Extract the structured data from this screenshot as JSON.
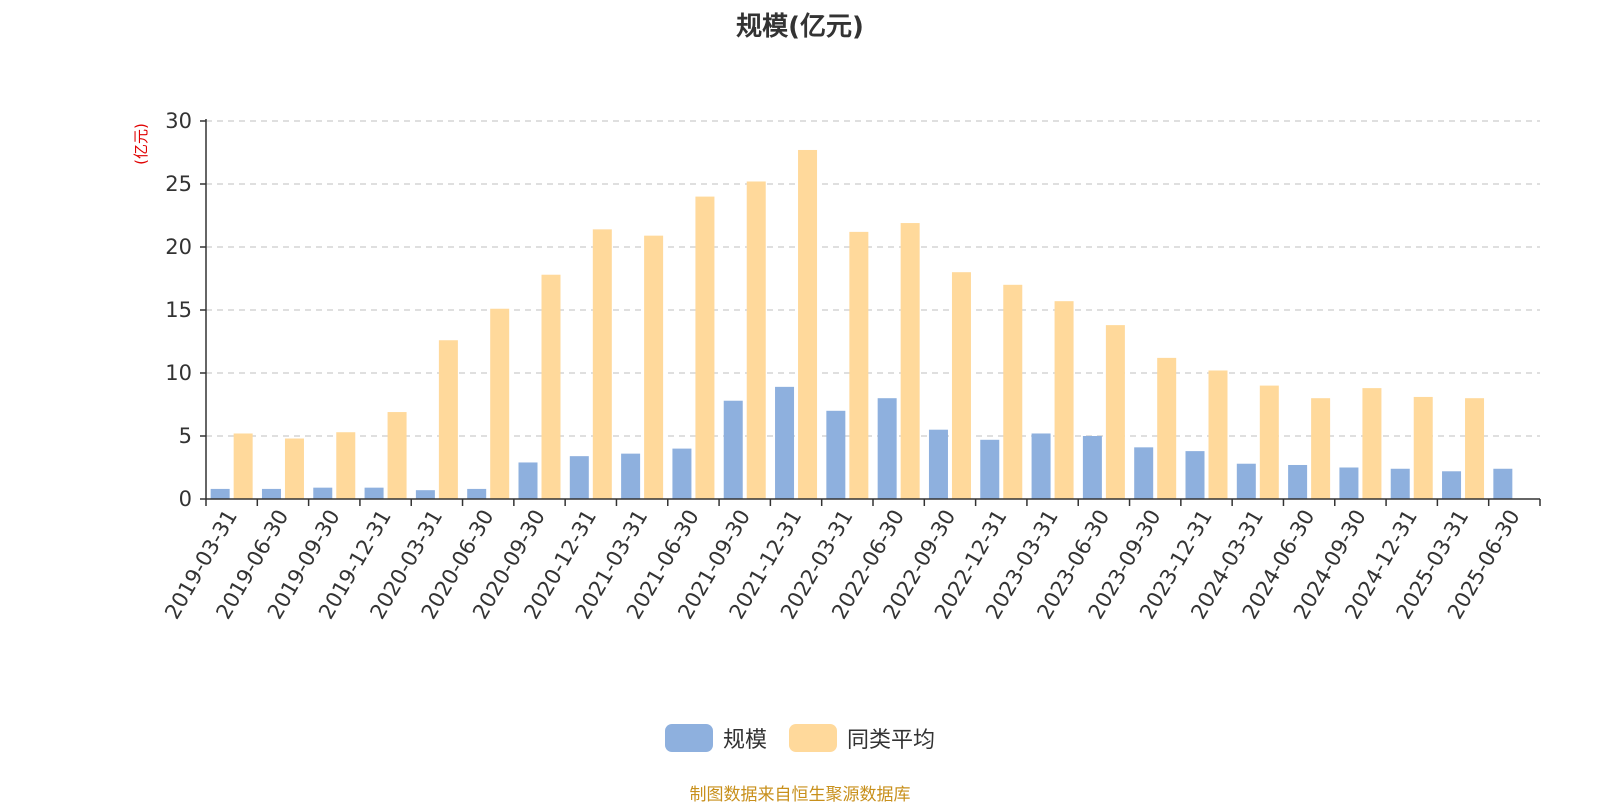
{
  "chart_data": {
    "type": "bar",
    "title": "规模(亿元)",
    "ylabel": "(亿元)",
    "ylim": [
      0,
      30
    ],
    "yticks": [
      0,
      5,
      10,
      15,
      20,
      25,
      30
    ],
    "grid": true,
    "legend_position": "bottom-center",
    "categories": [
      "2019-03-31",
      "2019-06-30",
      "2019-09-30",
      "2019-12-31",
      "2020-03-31",
      "2020-06-30",
      "2020-09-30",
      "2020-12-31",
      "2021-03-31",
      "2021-06-30",
      "2021-09-30",
      "2021-12-31",
      "2022-03-31",
      "2022-06-30",
      "2022-09-30",
      "2022-12-31",
      "2023-03-31",
      "2023-06-30",
      "2023-09-30",
      "2023-12-31",
      "2024-03-31",
      "2024-06-30",
      "2024-09-30",
      "2024-12-31",
      "2025-03-31",
      "2025-06-30"
    ],
    "series": [
      {
        "name": "规模",
        "color": "#8eb0de",
        "values": [
          0.8,
          0.8,
          0.9,
          0.9,
          0.7,
          0.8,
          2.9,
          3.4,
          3.6,
          4.0,
          7.8,
          8.9,
          7.0,
          8.0,
          5.5,
          4.7,
          5.2,
          5.0,
          4.1,
          3.8,
          2.8,
          2.7,
          2.5,
          2.4,
          2.2,
          2.4
        ]
      },
      {
        "name": "同类平均",
        "color": "#ffd99b",
        "values": [
          5.2,
          4.8,
          5.3,
          6.9,
          12.6,
          15.1,
          17.8,
          21.4,
          20.9,
          24.0,
          25.2,
          27.7,
          21.2,
          21.9,
          18.0,
          17.0,
          15.7,
          13.8,
          11.2,
          10.2,
          9.0,
          8.0,
          8.8,
          8.1,
          8.0,
          null
        ]
      }
    ]
  },
  "source_note": "制图数据来自恒生聚源数据库"
}
